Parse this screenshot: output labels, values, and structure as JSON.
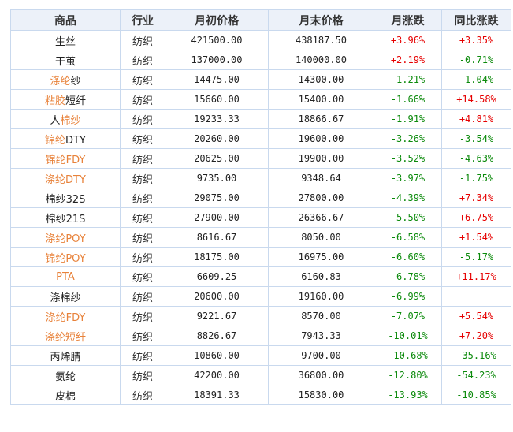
{
  "headers": [
    "商品",
    "行业",
    "月初价格",
    "月末价格",
    "月涨跌",
    "同比涨跌"
  ],
  "colors": {
    "link": "#e8823a",
    "up": "#e60000",
    "down": "#0b8a0b",
    "header_bg": "#ecf1f9",
    "border": "#c9d9ee"
  },
  "rows": [
    {
      "name": [
        {
          "t": "生丝",
          "l": false
        }
      ],
      "industry": "纺织",
      "start": "421500.00",
      "end": "438187.50",
      "mom": "+3.96%",
      "yoy": "+3.35%"
    },
    {
      "name": [
        {
          "t": "干茧",
          "l": false
        }
      ],
      "industry": "纺织",
      "start": "137000.00",
      "end": "140000.00",
      "mom": "+2.19%",
      "yoy": "-0.71%"
    },
    {
      "name": [
        {
          "t": "涤纶",
          "l": true
        },
        {
          "t": "纱",
          "l": false
        }
      ],
      "industry": "纺织",
      "start": "14475.00",
      "end": "14300.00",
      "mom": "-1.21%",
      "yoy": "-1.04%"
    },
    {
      "name": [
        {
          "t": "粘胶",
          "l": true
        },
        {
          "t": "短纤",
          "l": false
        }
      ],
      "industry": "纺织",
      "start": "15660.00",
      "end": "15400.00",
      "mom": "-1.66%",
      "yoy": "+14.58%"
    },
    {
      "name": [
        {
          "t": "人",
          "l": false
        },
        {
          "t": "棉纱",
          "l": true
        }
      ],
      "industry": "纺织",
      "start": "19233.33",
      "end": "18866.67",
      "mom": "-1.91%",
      "yoy": "+4.81%"
    },
    {
      "name": [
        {
          "t": "锦纶",
          "l": true
        },
        {
          "t": "DTY",
          "l": false
        }
      ],
      "industry": "纺织",
      "start": "20260.00",
      "end": "19600.00",
      "mom": "-3.26%",
      "yoy": "-3.54%"
    },
    {
      "name": [
        {
          "t": "锦纶FDY",
          "l": true
        }
      ],
      "industry": "纺织",
      "start": "20625.00",
      "end": "19900.00",
      "mom": "-3.52%",
      "yoy": "-4.63%"
    },
    {
      "name": [
        {
          "t": "涤纶DTY",
          "l": true
        }
      ],
      "industry": "纺织",
      "start": "9735.00",
      "end": "9348.64",
      "mom": "-3.97%",
      "yoy": "-1.75%"
    },
    {
      "name": [
        {
          "t": "棉纱32S",
          "l": false
        }
      ],
      "industry": "纺织",
      "start": "29075.00",
      "end": "27800.00",
      "mom": "-4.39%",
      "yoy": "+7.34%"
    },
    {
      "name": [
        {
          "t": "棉纱21S",
          "l": false
        }
      ],
      "industry": "纺织",
      "start": "27900.00",
      "end": "26366.67",
      "mom": "-5.50%",
      "yoy": "+6.75%"
    },
    {
      "name": [
        {
          "t": "涤纶POY",
          "l": true
        }
      ],
      "industry": "纺织",
      "start": "8616.67",
      "end": "8050.00",
      "mom": "-6.58%",
      "yoy": "+1.54%"
    },
    {
      "name": [
        {
          "t": "锦纶POY",
          "l": true
        }
      ],
      "industry": "纺织",
      "start": "18175.00",
      "end": "16975.00",
      "mom": "-6.60%",
      "yoy": "-5.17%"
    },
    {
      "name": [
        {
          "t": "PTA",
          "l": true
        }
      ],
      "industry": "纺织",
      "start": "6609.25",
      "end": "6160.83",
      "mom": "-6.78%",
      "yoy": "+11.17%"
    },
    {
      "name": [
        {
          "t": "涤棉纱",
          "l": false
        }
      ],
      "industry": "纺织",
      "start": "20600.00",
      "end": "19160.00",
      "mom": "-6.99%",
      "yoy": ""
    },
    {
      "name": [
        {
          "t": "涤纶FDY",
          "l": true
        }
      ],
      "industry": "纺织",
      "start": "9221.67",
      "end": "8570.00",
      "mom": "-7.07%",
      "yoy": "+5.54%"
    },
    {
      "name": [
        {
          "t": "涤纶短纤",
          "l": true
        }
      ],
      "industry": "纺织",
      "start": "8826.67",
      "end": "7943.33",
      "mom": "-10.01%",
      "yoy": "+7.20%"
    },
    {
      "name": [
        {
          "t": "丙烯腈",
          "l": false
        }
      ],
      "industry": "纺织",
      "start": "10860.00",
      "end": "9700.00",
      "mom": "-10.68%",
      "yoy": "-35.16%"
    },
    {
      "name": [
        {
          "t": "氨纶",
          "l": false
        }
      ],
      "industry": "纺织",
      "start": "42200.00",
      "end": "36800.00",
      "mom": "-12.80%",
      "yoy": "-54.23%"
    },
    {
      "name": [
        {
          "t": "皮棉",
          "l": false
        }
      ],
      "industry": "纺织",
      "start": "18391.33",
      "end": "15830.00",
      "mom": "-13.93%",
      "yoy": "-10.85%"
    }
  ]
}
